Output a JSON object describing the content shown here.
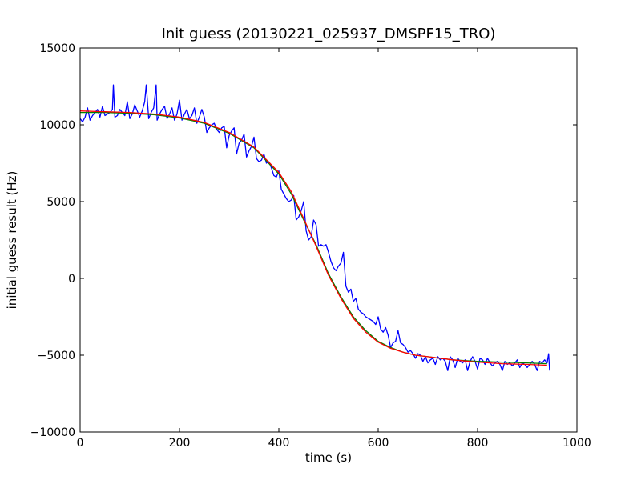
{
  "chart_data": {
    "type": "line",
    "title": "Init guess (20130221_025937_DMSPF15_TRO)",
    "xlabel": "time (s)",
    "ylabel": "initial guess result (Hz)",
    "xlim": [
      0,
      1000
    ],
    "ylim": [
      -10000,
      15000
    ],
    "x_ticks": [
      0,
      200,
      400,
      600,
      800,
      1000
    ],
    "y_ticks": [
      -10000,
      -5000,
      0,
      5000,
      10000,
      15000
    ],
    "x_tick_labels": [
      "0",
      "200",
      "400",
      "600",
      "800",
      "1000"
    ],
    "y_tick_labels": [
      "−10000",
      "−5000",
      "0",
      "5000",
      "10000",
      "15000"
    ],
    "grid": false,
    "series": [
      {
        "color": "#0000ff",
        "x": [
          0,
          5,
          10,
          15,
          20,
          25,
          30,
          35,
          40,
          45,
          50,
          55,
          60,
          65,
          67,
          70,
          75,
          80,
          85,
          90,
          95,
          100,
          105,
          110,
          115,
          120,
          125,
          130,
          133,
          138,
          143,
          148,
          153,
          155,
          160,
          165,
          170,
          175,
          180,
          185,
          190,
          195,
          200,
          205,
          210,
          215,
          220,
          225,
          230,
          235,
          240,
          245,
          250,
          255,
          260,
          265,
          270,
          275,
          280,
          285,
          290,
          295,
          300,
          305,
          310,
          315,
          320,
          325,
          330,
          335,
          340,
          345,
          350,
          355,
          360,
          365,
          370,
          375,
          380,
          385,
          390,
          395,
          400,
          405,
          410,
          415,
          420,
          425,
          430,
          435,
          440,
          445,
          450,
          455,
          460,
          465,
          470,
          475,
          480,
          485,
          490,
          495,
          500,
          505,
          510,
          515,
          520,
          525,
          530,
          535,
          540,
          545,
          550,
          555,
          560,
          565,
          570,
          575,
          580,
          585,
          590,
          595,
          600,
          605,
          610,
          615,
          620,
          625,
          630,
          635,
          640,
          645,
          650,
          655,
          660,
          665,
          670,
          675,
          680,
          685,
          690,
          695,
          700,
          705,
          710,
          715,
          720,
          725,
          730,
          735,
          740,
          745,
          750,
          755,
          760,
          765,
          770,
          775,
          780,
          785,
          790,
          795,
          800,
          805,
          810,
          815,
          820,
          825,
          830,
          835,
          840,
          845,
          850,
          855,
          860,
          865,
          870,
          875,
          880,
          885,
          890,
          895,
          900,
          905,
          910,
          915,
          920,
          925,
          930,
          935,
          940,
          943,
          945
        ],
        "y": [
          10400,
          10200,
          10500,
          11100,
          10300,
          10600,
          10800,
          11000,
          10500,
          11200,
          10600,
          10700,
          10800,
          11000,
          12600,
          10500,
          10600,
          11000,
          10800,
          10600,
          11500,
          10400,
          10700,
          11300,
          10900,
          10500,
          10900,
          11500,
          12600,
          10400,
          10800,
          11100,
          12600,
          10300,
          10700,
          11000,
          11200,
          10400,
          10700,
          11100,
          10300,
          10700,
          11600,
          10300,
          10700,
          11000,
          10400,
          10600,
          11100,
          10100,
          10500,
          11000,
          10500,
          9500,
          9800,
          10000,
          10100,
          9700,
          9500,
          9800,
          9900,
          8500,
          9300,
          9600,
          9800,
          8100,
          8800,
          9000,
          9400,
          7900,
          8300,
          8600,
          9200,
          7800,
          7600,
          7700,
          8100,
          7500,
          7600,
          7200,
          6700,
          6600,
          7000,
          5800,
          5500,
          5200,
          5000,
          5100,
          5400,
          3800,
          4000,
          4400,
          5000,
          3100,
          2500,
          2700,
          3800,
          3500,
          2100,
          2200,
          2100,
          2200,
          1700,
          1100,
          700,
          500,
          800,
          1000,
          1700,
          -500,
          -900,
          -700,
          -1500,
          -1300,
          -2000,
          -2200,
          -2300,
          -2500,
          -2600,
          -2700,
          -2800,
          -3000,
          -2500,
          -3300,
          -3500,
          -3200,
          -3700,
          -4500,
          -4200,
          -4100,
          -3400,
          -4200,
          -4300,
          -4500,
          -4800,
          -4700,
          -4900,
          -5200,
          -4900,
          -5000,
          -5400,
          -5100,
          -5500,
          -5300,
          -5200,
          -5600,
          -5100,
          -5300,
          -5200,
          -5400,
          -6000,
          -5100,
          -5300,
          -5800,
          -5200,
          -5400,
          -5500,
          -5300,
          -6000,
          -5400,
          -5100,
          -5400,
          -5900,
          -5200,
          -5300,
          -5600,
          -5200,
          -5500,
          -5700,
          -5500,
          -5400,
          -5600,
          -6000,
          -5400,
          -5600,
          -5500,
          -5700,
          -5500,
          -5300,
          -5800,
          -5500,
          -5600,
          -5800,
          -5600,
          -5400,
          -5600,
          -6000,
          -5400,
          -5500,
          -5300,
          -5500,
          -4900,
          -6000
        ]
      },
      {
        "color": "#008000",
        "x": [
          0,
          50,
          100,
          150,
          200,
          250,
          300,
          350,
          400,
          425,
          450,
          475,
          500,
          525,
          550,
          575,
          600,
          625,
          650,
          675,
          700,
          750,
          800,
          850,
          900,
          940
        ],
        "y": [
          10800,
          10800,
          10750,
          10650,
          10450,
          10100,
          9450,
          8500,
          6800,
          5500,
          3800,
          2200,
          300,
          -1200,
          -2500,
          -3400,
          -4100,
          -4500,
          -4800,
          -5000,
          -5100,
          -5300,
          -5400,
          -5450,
          -5500,
          -5550
        ]
      },
      {
        "color": "#ff0000",
        "x": [
          0,
          50,
          100,
          150,
          200,
          250,
          300,
          350,
          400,
          425,
          450,
          475,
          500,
          525,
          550,
          575,
          600,
          625,
          650,
          675,
          700,
          750,
          800,
          850,
          900,
          940
        ],
        "y": [
          10900,
          10850,
          10800,
          10700,
          10500,
          10150,
          9500,
          8550,
          6900,
          5650,
          3900,
          2100,
          200,
          -1300,
          -2600,
          -3500,
          -4150,
          -4550,
          -4800,
          -5000,
          -5100,
          -5300,
          -5450,
          -5550,
          -5600,
          -5650
        ]
      }
    ]
  }
}
